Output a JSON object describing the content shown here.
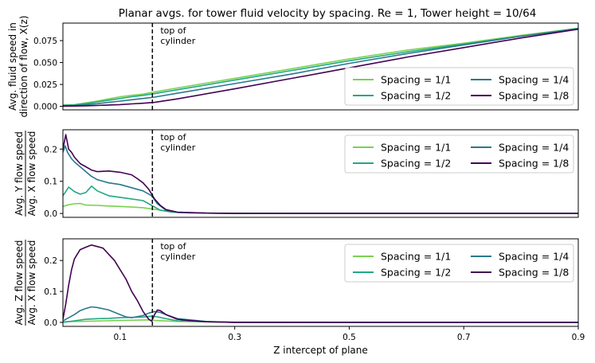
{
  "title": "Planar avgs. for tower fluid velocity by spacing. Re = 1, Tower height = 10/64",
  "chart_data": [
    {
      "type": "line",
      "ylabel_lines": [
        "Avg. fluid speed in",
        "direction of flow, X(z)"
      ],
      "ylim": [
        -0.004,
        0.095
      ],
      "yticks": [
        0.0,
        0.025,
        0.05,
        0.075
      ],
      "ytick_labels": [
        "0.000",
        "0.025",
        "0.050",
        "0.075"
      ],
      "annotation": [
        "top of",
        "cylinder"
      ],
      "series": [
        {
          "name": "Spacing = 1/1",
          "color": "#7ad151",
          "x": [
            0.0,
            0.02,
            0.04,
            0.06,
            0.08,
            0.1,
            0.12,
            0.14,
            0.16,
            0.2,
            0.3,
            0.4,
            0.5,
            0.6,
            0.7,
            0.8,
            0.9
          ],
          "values": [
            0.0015,
            0.002,
            0.004,
            0.006,
            0.0085,
            0.011,
            0.0125,
            0.014,
            0.0165,
            0.021,
            0.032,
            0.043,
            0.054,
            0.064,
            0.072,
            0.081,
            0.089
          ]
        },
        {
          "name": "Spacing = 1/2",
          "color": "#22a884",
          "x": [
            0.0,
            0.02,
            0.04,
            0.06,
            0.08,
            0.1,
            0.12,
            0.14,
            0.16,
            0.2,
            0.3,
            0.4,
            0.5,
            0.6,
            0.7,
            0.8,
            0.9
          ],
          "values": [
            0.0012,
            0.0016,
            0.003,
            0.005,
            0.007,
            0.009,
            0.011,
            0.0125,
            0.0145,
            0.019,
            0.03,
            0.041,
            0.052,
            0.062,
            0.071,
            0.08,
            0.089
          ]
        },
        {
          "name": "Spacing = 1/4",
          "color": "#2a788e",
          "x": [
            0.0,
            0.02,
            0.04,
            0.06,
            0.08,
            0.1,
            0.12,
            0.14,
            0.16,
            0.2,
            0.3,
            0.4,
            0.5,
            0.6,
            0.7,
            0.8,
            0.9
          ],
          "values": [
            0.0008,
            0.001,
            0.0018,
            0.003,
            0.0045,
            0.006,
            0.0075,
            0.009,
            0.0105,
            0.015,
            0.026,
            0.037,
            0.049,
            0.06,
            0.07,
            0.08,
            0.0885
          ]
        },
        {
          "name": "Spacing = 1/8",
          "color": "#440154",
          "x": [
            0.0,
            0.02,
            0.04,
            0.06,
            0.08,
            0.1,
            0.12,
            0.14,
            0.16,
            0.2,
            0.3,
            0.4,
            0.5,
            0.6,
            0.7,
            0.8,
            0.9
          ],
          "values": [
            0.0003,
            0.0004,
            0.0006,
            0.001,
            0.0015,
            0.002,
            0.0028,
            0.0035,
            0.0045,
            0.0085,
            0.02,
            0.032,
            0.044,
            0.056,
            0.067,
            0.078,
            0.088
          ]
        }
      ]
    },
    {
      "type": "line",
      "ylabel_num": "Avg. Y flow speed",
      "ylabel_den": "Avg. X flow speed",
      "ylim": [
        -0.012,
        0.26
      ],
      "yticks": [
        0.0,
        0.1,
        0.2
      ],
      "ytick_labels": [
        "0.0",
        "0.1",
        "0.2"
      ],
      "annotation": [
        "top of",
        "cylinder"
      ],
      "series": [
        {
          "name": "Spacing = 1/1",
          "color": "#7ad151",
          "x": [
            0.0,
            0.01,
            0.02,
            0.03,
            0.04,
            0.06,
            0.08,
            0.1,
            0.12,
            0.14,
            0.16,
            0.18,
            0.2,
            0.25,
            0.3,
            0.4,
            0.9
          ],
          "values": [
            0.022,
            0.027,
            0.03,
            0.031,
            0.026,
            0.025,
            0.023,
            0.022,
            0.02,
            0.018,
            0.013,
            0.008,
            0.004,
            0.001,
            0.0005,
            0.0,
            0.0
          ]
        },
        {
          "name": "Spacing = 1/2",
          "color": "#22a884",
          "x": [
            0.0,
            0.005,
            0.01,
            0.02,
            0.03,
            0.04,
            0.05,
            0.06,
            0.08,
            0.1,
            0.12,
            0.14,
            0.155,
            0.17,
            0.19,
            0.22,
            0.3,
            0.4,
            0.9
          ],
          "values": [
            0.055,
            0.068,
            0.082,
            0.068,
            0.06,
            0.065,
            0.085,
            0.07,
            0.055,
            0.05,
            0.045,
            0.04,
            0.025,
            0.01,
            0.004,
            0.0015,
            0.0005,
            0.0,
            0.0
          ]
        },
        {
          "name": "Spacing = 1/4",
          "color": "#2a788e",
          "x": [
            0.0,
            0.004,
            0.008,
            0.015,
            0.02,
            0.03,
            0.04,
            0.05,
            0.06,
            0.08,
            0.1,
            0.12,
            0.14,
            0.155,
            0.165,
            0.18,
            0.2,
            0.25,
            0.3,
            0.9
          ],
          "values": [
            0.19,
            0.21,
            0.19,
            0.17,
            0.16,
            0.145,
            0.13,
            0.115,
            0.105,
            0.095,
            0.09,
            0.08,
            0.07,
            0.055,
            0.03,
            0.01,
            0.003,
            0.001,
            0.0,
            0.0
          ]
        },
        {
          "name": "Spacing = 1/8",
          "color": "#440154",
          "x": [
            0.0,
            0.005,
            0.01,
            0.015,
            0.02,
            0.03,
            0.04,
            0.05,
            0.06,
            0.08,
            0.1,
            0.12,
            0.13,
            0.14,
            0.15,
            0.16,
            0.17,
            0.18,
            0.2,
            0.25,
            0.3,
            0.9
          ],
          "values": [
            0.2,
            0.245,
            0.2,
            0.19,
            0.175,
            0.155,
            0.145,
            0.135,
            0.13,
            0.132,
            0.128,
            0.12,
            0.108,
            0.095,
            0.075,
            0.045,
            0.025,
            0.012,
            0.004,
            0.001,
            0.0,
            0.0
          ]
        }
      ]
    },
    {
      "type": "line",
      "ylabel_num": "Avg. Z flow speed",
      "ylabel_den": "Avg. X flow speed",
      "xlabel": "Z intercept of plane",
      "xlim": [
        0.0,
        0.9
      ],
      "xticks": [
        0.1,
        0.3,
        0.5,
        0.7,
        0.9
      ],
      "xtick_labels": [
        "0.1",
        "0.3",
        "0.5",
        "0.7",
        "0.9"
      ],
      "ylim": [
        -0.013,
        0.27
      ],
      "yticks": [
        0.0,
        0.1,
        0.2
      ],
      "ytick_labels": [
        "0.0",
        "0.1",
        "0.2"
      ],
      "annotation": [
        "top of",
        "cylinder"
      ],
      "series": [
        {
          "name": "Spacing = 1/1",
          "color": "#7ad151",
          "x": [
            0.0,
            0.05,
            0.1,
            0.15,
            0.16,
            0.2,
            0.3,
            0.9
          ],
          "values": [
            0.002,
            0.004,
            0.006,
            0.008,
            0.006,
            0.003,
            0.001,
            0.0
          ]
        },
        {
          "name": "Spacing = 1/2",
          "color": "#22a884",
          "x": [
            0.0,
            0.02,
            0.04,
            0.06,
            0.08,
            0.1,
            0.12,
            0.14,
            0.155,
            0.165,
            0.18,
            0.2,
            0.25,
            0.3,
            0.9
          ],
          "values": [
            0.0,
            0.005,
            0.01,
            0.012,
            0.013,
            0.015,
            0.016,
            0.017,
            0.02,
            0.018,
            0.012,
            0.005,
            0.002,
            0.0,
            0.0
          ]
        },
        {
          "name": "Spacing = 1/4",
          "color": "#2a788e",
          "x": [
            0.0,
            0.02,
            0.03,
            0.04,
            0.05,
            0.06,
            0.08,
            0.1,
            0.11,
            0.12,
            0.14,
            0.15,
            0.16,
            0.17,
            0.18,
            0.2,
            0.25,
            0.3,
            0.9
          ],
          "values": [
            0.005,
            0.025,
            0.038,
            0.045,
            0.05,
            0.048,
            0.04,
            0.025,
            0.018,
            0.015,
            0.022,
            0.03,
            0.035,
            0.032,
            0.025,
            0.012,
            0.003,
            0.0,
            0.0
          ]
        },
        {
          "name": "Spacing = 1/8",
          "color": "#440154",
          "x": [
            0.0,
            0.005,
            0.01,
            0.015,
            0.02,
            0.03,
            0.04,
            0.05,
            0.06,
            0.07,
            0.08,
            0.09,
            0.1,
            0.11,
            0.12,
            0.13,
            0.14,
            0.15,
            0.155,
            0.16,
            0.165,
            0.17,
            0.18,
            0.2,
            0.22,
            0.25,
            0.3,
            0.9
          ],
          "values": [
            0.01,
            0.06,
            0.12,
            0.17,
            0.205,
            0.235,
            0.243,
            0.25,
            0.245,
            0.24,
            0.22,
            0.2,
            0.17,
            0.14,
            0.1,
            0.07,
            0.035,
            0.01,
            0.004,
            0.025,
            0.04,
            0.038,
            0.025,
            0.01,
            0.006,
            0.002,
            0.0,
            0.0
          ]
        }
      ]
    }
  ]
}
